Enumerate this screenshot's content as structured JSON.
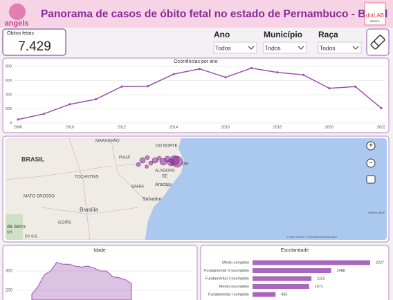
{
  "header": {
    "logo": "angels",
    "title": "Panorama de casos de óbito fetal no estado de Pernambuco - Brasil",
    "brand": "dotLAB",
    "brand_sub": "BRAZIL"
  },
  "kpi": {
    "label": "Óbitos fetais",
    "value": "7.429"
  },
  "filters": [
    {
      "label": "Ano",
      "value": "Todos"
    },
    {
      "label": "Município",
      "value": "Todos"
    },
    {
      "label": "Raça",
      "value": "Todos"
    }
  ],
  "map": {
    "labels": [
      "BRASIL",
      "MARANHÃO",
      "PIAUÍ",
      "TOCANTINS",
      "BAHIA",
      "MATO GROSSO",
      "GOIÁS",
      "Brasília",
      "Salvador",
      "Aracaju",
      "SE",
      "ALAGOAS",
      "DO NORTE",
      "cife",
      "DO SUL",
      "da Serra",
      "SANTA HELE",
      "UH"
    ],
    "attribution": "© 2025 TomTom, © 2025 Microsoft Corporation"
  },
  "chart_data": [
    {
      "type": "line",
      "title": "Ocorrências por ano",
      "color": "#9b4fb0",
      "x": [
        2008,
        2009,
        2010,
        2011,
        2012,
        2013,
        2014,
        2015,
        2016,
        2017,
        2018,
        2019,
        2020,
        2021,
        2022
      ],
      "values": [
        50,
        130,
        265,
        335,
        515,
        520,
        690,
        765,
        645,
        775,
        715,
        680,
        490,
        515,
        210
      ],
      "xlim": [
        2008,
        2022
      ],
      "xticks": [
        2008,
        2010,
        2012,
        2014,
        2016,
        2018,
        2020,
        2022
      ],
      "ylim": [
        0,
        800
      ],
      "yticks": [
        0,
        200,
        400,
        600,
        800
      ],
      "grid": true
    },
    {
      "type": "area",
      "title": "Idade",
      "color": "#9b4fb0",
      "values": [
        180,
        220,
        280,
        300,
        345,
        335,
        335,
        325,
        320,
        325,
        315,
        300,
        300,
        270,
        265,
        255,
        235
      ],
      "ylim": [
        150,
        400
      ],
      "yticks": [
        200,
        300
      ]
    },
    {
      "type": "hbar",
      "title": "Escolaridade",
      "color": "#a968bd",
      "categories": [
        "Médio completo",
        "Fundamental II incompleto",
        "Fundamental I incompleto",
        "Médio incompleto",
        "Fundamental I completo"
      ],
      "values": [
        2227,
        1488,
        1115,
        1071,
        435
      ]
    }
  ]
}
